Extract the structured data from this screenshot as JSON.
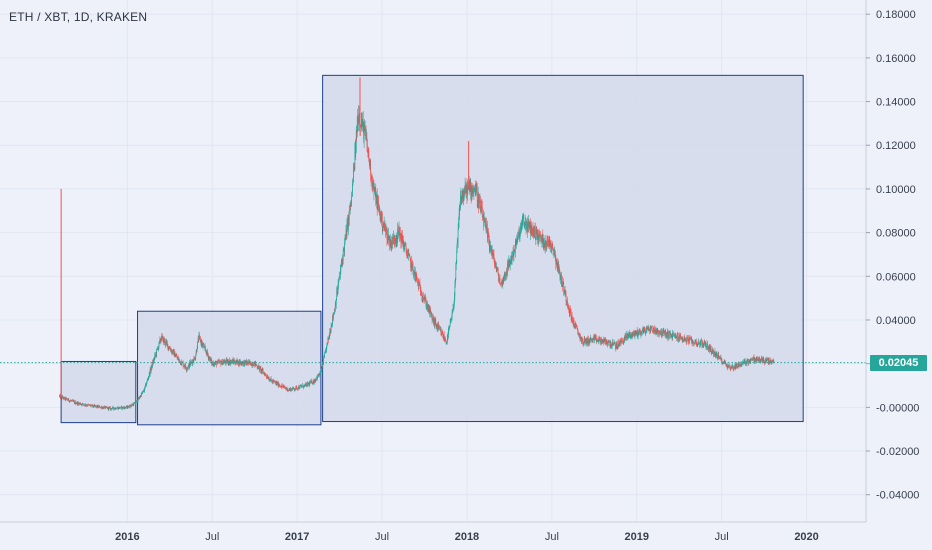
{
  "header": {
    "symbol_title": "ETH / XBT, 1D, KRAKEN"
  },
  "colors": {
    "background": "#eef1fa",
    "grid": "#e2e6f0",
    "axis_text": "#3a3f4d",
    "up_candle": "#26a69a",
    "down_candle": "#ef5350",
    "box_fill": "#d2d9ea",
    "box_stroke": "#1c3f8c",
    "last_price_line": "#26a69a",
    "spike_line": "#ef5350"
  },
  "last_price": {
    "value": 0.02045,
    "label": "0.02045"
  },
  "chart_data": {
    "type": "candlestick",
    "title": "ETH / XBT, 1D, KRAKEN",
    "x_axis": {
      "ticks": [
        {
          "label": "2016",
          "t": 2016.0
        },
        {
          "label": "Jul",
          "t": 2016.5
        },
        {
          "label": "2017",
          "t": 2017.0
        },
        {
          "label": "Jul",
          "t": 2017.5
        },
        {
          "label": "2018",
          "t": 2018.0
        },
        {
          "label": "Jul",
          "t": 2018.5
        },
        {
          "label": "2019",
          "t": 2019.0
        },
        {
          "label": "Jul",
          "t": 2019.5
        },
        {
          "label": "2020",
          "t": 2020.0
        }
      ],
      "range": [
        2015.25,
        2020.35
      ]
    },
    "y_axis": {
      "ticks": [
        {
          "label": "0.18000",
          "v": 0.18
        },
        {
          "label": "0.16000",
          "v": 0.16
        },
        {
          "label": "0.14000",
          "v": 0.14
        },
        {
          "label": "0.12000",
          "v": 0.12
        },
        {
          "label": "0.10000",
          "v": 0.1
        },
        {
          "label": "0.08000",
          "v": 0.08
        },
        {
          "label": "0.06000",
          "v": 0.06
        },
        {
          "label": "0.04000",
          "v": 0.04
        },
        {
          "label": "0.02000",
          "v": 0.02
        },
        {
          "label": "-0.00000",
          "v": 0.0
        },
        {
          "label": "-0.02000",
          "v": -0.02
        },
        {
          "label": "-0.04000",
          "v": -0.04
        }
      ],
      "range": [
        -0.0525,
        0.1865
      ],
      "position": "right"
    },
    "price_path": [
      [
        2015.6,
        0.005
      ],
      [
        2015.63,
        0.004
      ],
      [
        2015.7,
        0.002
      ],
      [
        2015.8,
        0.0005
      ],
      [
        2015.9,
        -0.0005
      ],
      [
        2016.0,
        0.0
      ],
      [
        2016.05,
        0.002
      ],
      [
        2016.1,
        0.008
      ],
      [
        2016.14,
        0.018
      ],
      [
        2016.2,
        0.032
      ],
      [
        2016.25,
        0.027
      ],
      [
        2016.3,
        0.022
      ],
      [
        2016.35,
        0.018
      ],
      [
        2016.4,
        0.023
      ],
      [
        2016.42,
        0.032
      ],
      [
        2016.46,
        0.026
      ],
      [
        2016.5,
        0.02
      ],
      [
        2016.6,
        0.021
      ],
      [
        2016.75,
        0.02
      ],
      [
        2016.85,
        0.012
      ],
      [
        2016.95,
        0.008
      ],
      [
        2017.05,
        0.01
      ],
      [
        2017.1,
        0.012
      ],
      [
        2017.14,
        0.016
      ],
      [
        2017.18,
        0.03
      ],
      [
        2017.22,
        0.045
      ],
      [
        2017.27,
        0.07
      ],
      [
        2017.32,
        0.095
      ],
      [
        2017.36,
        0.135
      ],
      [
        2017.4,
        0.125
      ],
      [
        2017.45,
        0.1
      ],
      [
        2017.5,
        0.085
      ],
      [
        2017.55,
        0.075
      ],
      [
        2017.6,
        0.08
      ],
      [
        2017.65,
        0.07
      ],
      [
        2017.72,
        0.055
      ],
      [
        2017.8,
        0.04
      ],
      [
        2017.88,
        0.03
      ],
      [
        2017.92,
        0.045
      ],
      [
        2017.96,
        0.095
      ],
      [
        2018.0,
        0.1
      ],
      [
        2018.05,
        0.1
      ],
      [
        2018.1,
        0.085
      ],
      [
        2018.15,
        0.07
      ],
      [
        2018.2,
        0.056
      ],
      [
        2018.27,
        0.07
      ],
      [
        2018.33,
        0.085
      ],
      [
        2018.4,
        0.08
      ],
      [
        2018.45,
        0.076
      ],
      [
        2018.5,
        0.075
      ],
      [
        2018.55,
        0.06
      ],
      [
        2018.62,
        0.04
      ],
      [
        2018.68,
        0.03
      ],
      [
        2018.75,
        0.031
      ],
      [
        2018.82,
        0.03
      ],
      [
        2018.88,
        0.028
      ],
      [
        2018.95,
        0.033
      ],
      [
        2019.0,
        0.034
      ],
      [
        2019.08,
        0.036
      ],
      [
        2019.15,
        0.034
      ],
      [
        2019.25,
        0.032
      ],
      [
        2019.33,
        0.03
      ],
      [
        2019.4,
        0.029
      ],
      [
        2019.48,
        0.023
      ],
      [
        2019.55,
        0.018
      ],
      [
        2019.62,
        0.02
      ],
      [
        2019.68,
        0.022
      ],
      [
        2019.75,
        0.0215
      ],
      [
        2019.81,
        0.0205
      ]
    ],
    "high_spikes": [
      {
        "t": 2017.37,
        "v": 0.151
      },
      {
        "t": 2018.01,
        "v": 0.122
      }
    ],
    "early_spike": {
      "t": 2015.61,
      "v": 0.1
    },
    "boxes": [
      {
        "t0": 2015.61,
        "t1": 2016.05,
        "v_top": 0.021,
        "v_bottom": -0.007
      },
      {
        "t0": 2016.06,
        "t1": 2017.14,
        "v_top": 0.044,
        "v_bottom": -0.008
      },
      {
        "t0": 2017.15,
        "t1": 2019.98,
        "v_top": 0.152,
        "v_bottom": -0.0065
      }
    ]
  }
}
